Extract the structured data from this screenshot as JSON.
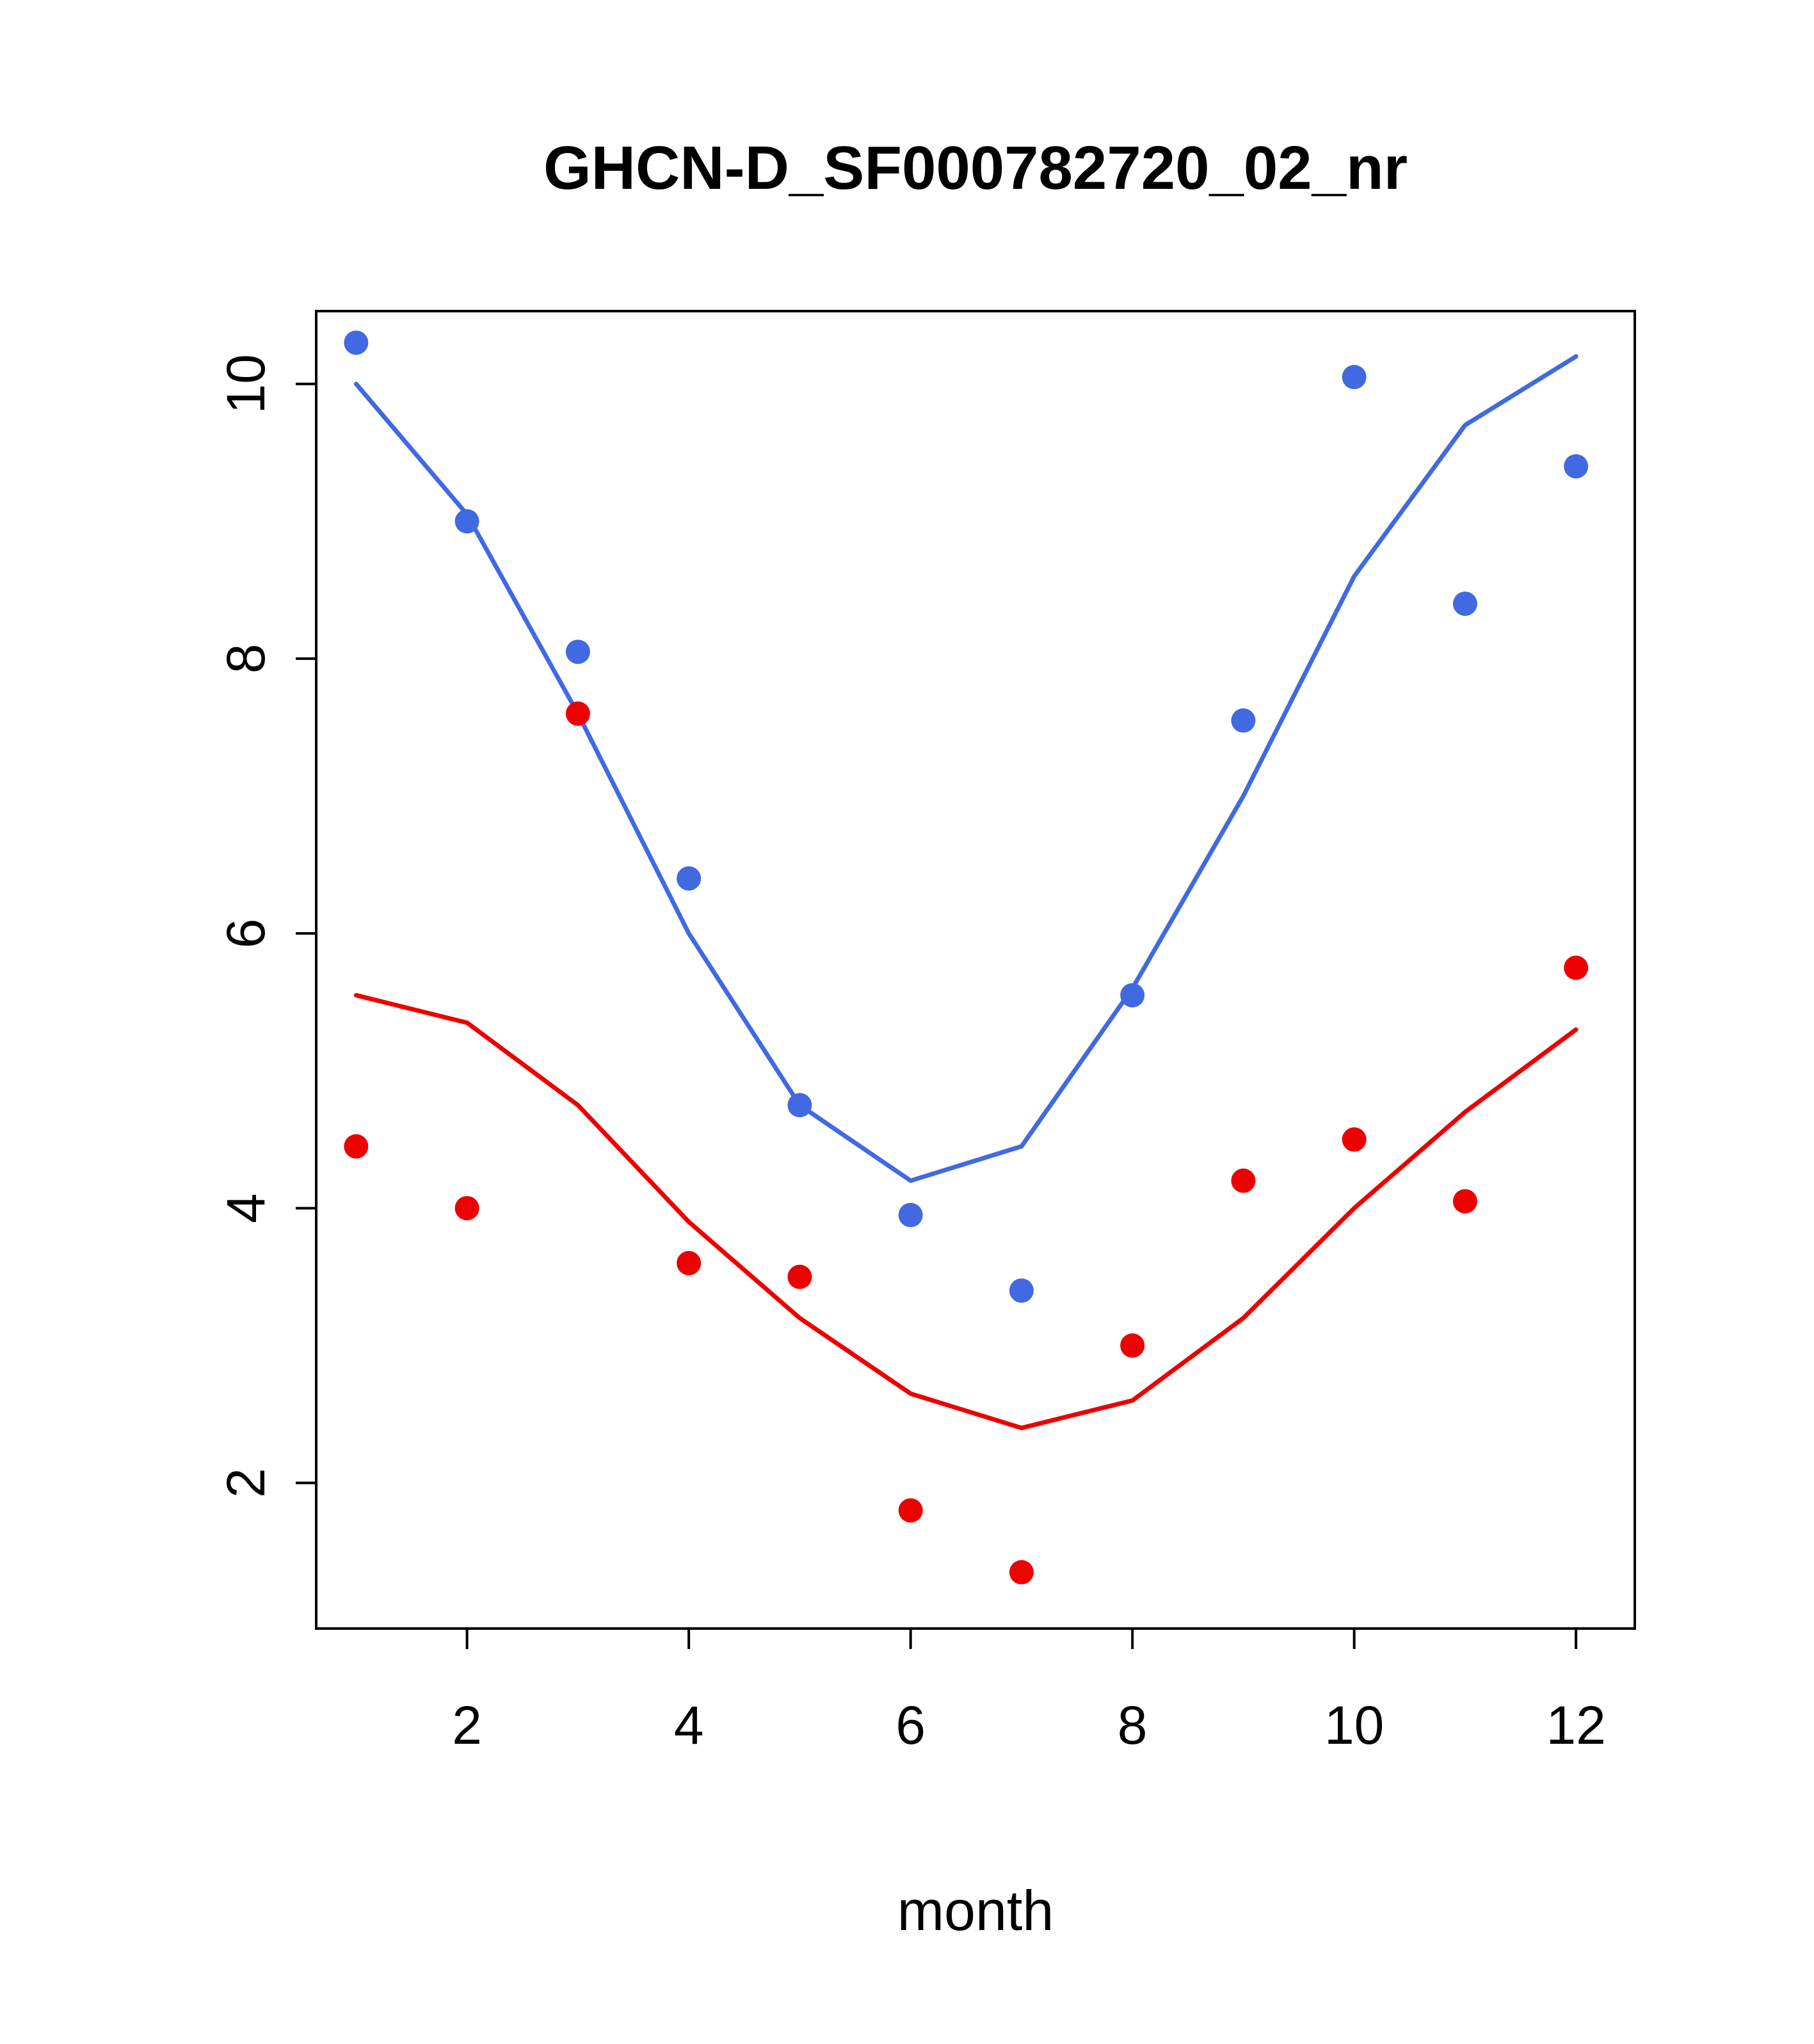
{
  "page": {
    "background": "#ffffff"
  },
  "chart_data": {
    "type": "scatter",
    "title": "GHCN-D_SF000782720_02_nr",
    "xlabel": "month",
    "ylabel": "",
    "x": [
      1,
      2,
      3,
      4,
      5,
      6,
      7,
      8,
      9,
      10,
      11,
      12
    ],
    "xlim": [
      0.64,
      12.53
    ],
    "ylim": [
      0.94,
      10.53
    ],
    "xticks": [
      2,
      4,
      6,
      8,
      10,
      12
    ],
    "yticks": [
      2,
      4,
      6,
      8,
      10
    ],
    "grid": false,
    "legend": "none",
    "colors": {
      "blue": "#4169E1",
      "red": "#EE0000"
    },
    "series": [
      {
        "name": "blue-points",
        "kind": "scatter",
        "color": "#4169E1",
        "values": [
          10.3,
          9.0,
          8.05,
          6.4,
          4.75,
          3.95,
          3.4,
          5.55,
          7.55,
          10.05,
          8.4,
          9.4
        ]
      },
      {
        "name": "blue-trend",
        "kind": "line",
        "color": "#4169E1",
        "values": [
          10.0,
          9.05,
          7.6,
          6.0,
          4.75,
          4.2,
          4.45,
          5.6,
          7.0,
          8.6,
          9.7,
          10.2
        ]
      },
      {
        "name": "red-points",
        "kind": "scatter",
        "color": "#EE0000",
        "values": [
          4.45,
          4.0,
          7.6,
          3.6,
          3.5,
          1.8,
          1.35,
          3.0,
          4.2,
          4.5,
          4.05,
          5.75
        ]
      },
      {
        "name": "red-trend",
        "kind": "line",
        "color": "#EE0000",
        "values": [
          5.55,
          5.35,
          4.75,
          3.9,
          3.2,
          2.65,
          2.4,
          2.6,
          3.2,
          4.0,
          4.7,
          5.3
        ]
      }
    ]
  }
}
